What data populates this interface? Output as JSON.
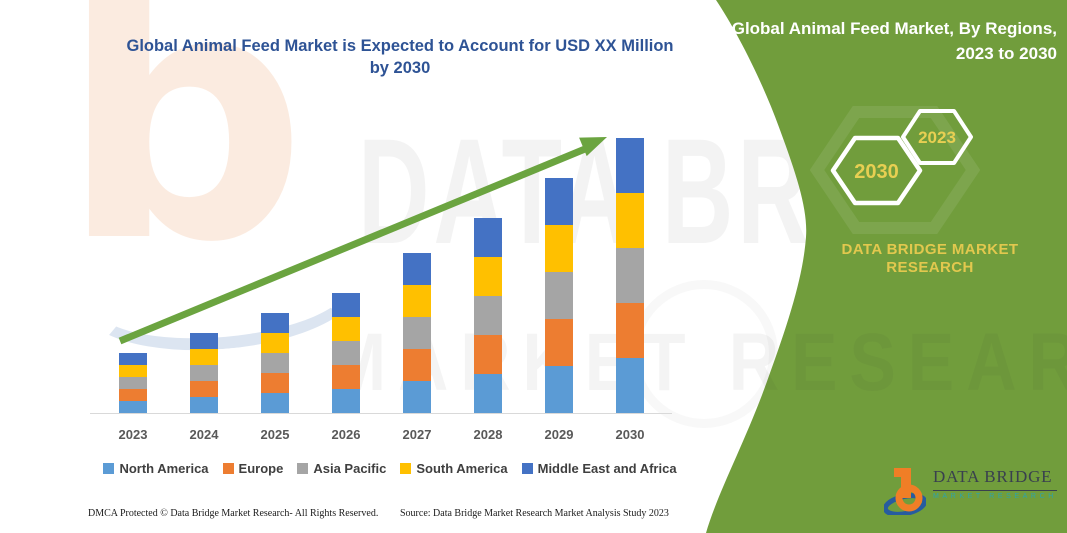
{
  "title": {
    "line1": "Global Animal Feed Market is Expected to Account for USD XX Million",
    "line2": "by 2030"
  },
  "chart_data": {
    "type": "bar",
    "stacked": true,
    "title": "Global Animal Feed Market is Expected to Account for USD XX Million by 2030",
    "categories": [
      "2023",
      "2024",
      "2025",
      "2026",
      "2027",
      "2028",
      "2029",
      "2030"
    ],
    "series": [
      {
        "name": "North America",
        "color": "#5B9BD5",
        "values": [
          12,
          16,
          20,
          24,
          32,
          39,
          47,
          55
        ]
      },
      {
        "name": "Europe",
        "color": "#ED7D31",
        "values": [
          12,
          16,
          20,
          24,
          32,
          39,
          47,
          55
        ]
      },
      {
        "name": "Asia Pacific",
        "color": "#A5A5A5",
        "values": [
          12,
          16,
          20,
          24,
          32,
          39,
          47,
          55
        ]
      },
      {
        "name": "South America",
        "color": "#FFC000",
        "values": [
          12,
          16,
          20,
          24,
          32,
          39,
          47,
          55
        ]
      },
      {
        "name": "Middle East and Africa",
        "color": "#4472C4",
        "values": [
          12,
          16,
          20,
          24,
          32,
          39,
          47,
          55
        ]
      }
    ],
    "xlabel": "",
    "ylabel": "",
    "y_axis_shown": false,
    "grid": false,
    "legend_position": "bottom",
    "trend_arrow": true,
    "note": "No numeric axis shown in source (values are 'USD XX Million'); series values are relative estimates read from bar heights."
  },
  "panel": {
    "header_line1": "Global Animal Feed Market, By Regions,",
    "header_line2": "2023 to 2030",
    "hexagon_far_year": "2030",
    "hexagon_near_year": "2023",
    "org_line1": "DATA BRIDGE MARKET",
    "org_line2": "RESEARCH",
    "logo_brand": "DATA BRIDGE",
    "logo_tagline": "MARKET RESEARCH"
  },
  "watermarks": {
    "letter": "b",
    "brand": "DATA BRIDGE",
    "tagline": "MARKET RESEARCH"
  },
  "footer": {
    "left": "DMCA Protected © Data Bridge Market Research- All Rights Reserved.",
    "source": "Source: Data Bridge Market Research  Market Analysis Study 2023"
  },
  "colors": {
    "panel_green": "#719D3C",
    "title_blue": "#2E5395",
    "hexagon_text_yellow": "#E8CF52",
    "arrow_green": "#6BA440"
  }
}
